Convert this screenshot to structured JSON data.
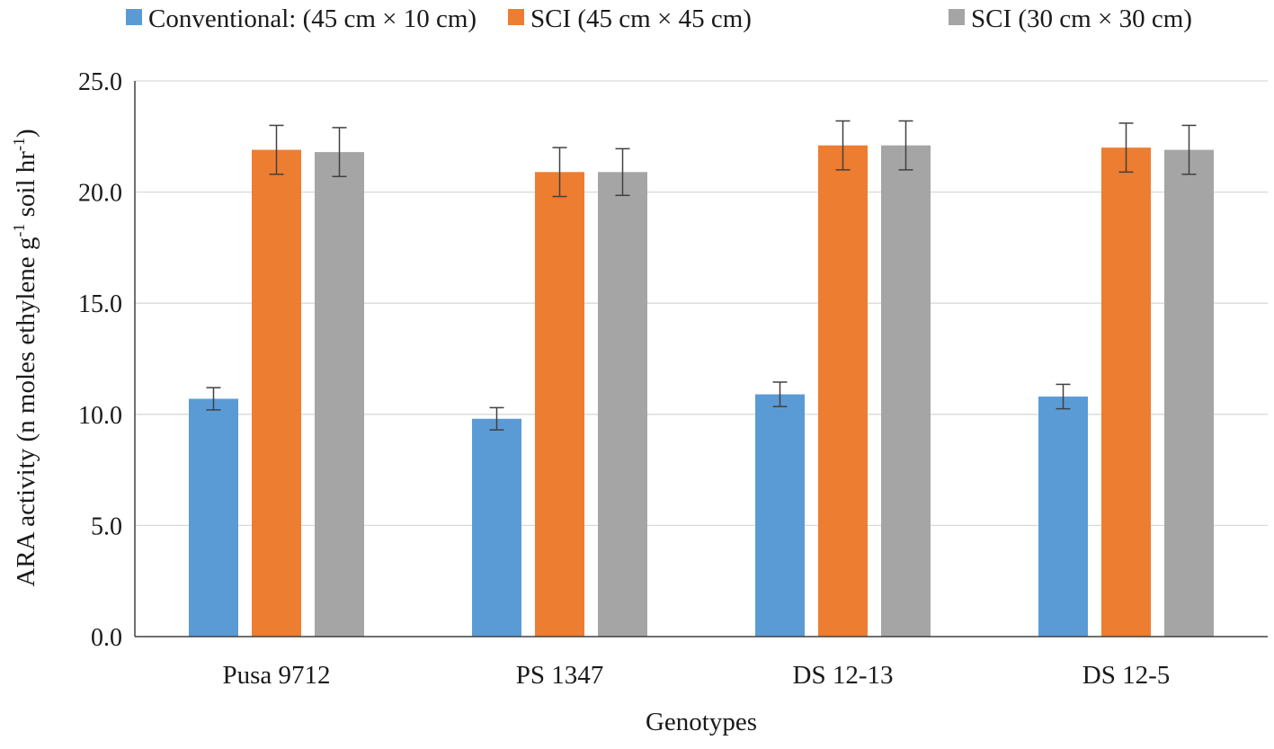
{
  "chart_data": {
    "type": "bar",
    "title": "",
    "xlabel": "Genotypes",
    "ylabel_main": "ARA activity (n moles ethylene g",
    "ylabel_sup1": "-1",
    "ylabel_mid": " soil hr",
    "ylabel_sup2": "-1",
    "ylabel_end": ")",
    "ylim": [
      0,
      25
    ],
    "yticks": [
      0,
      5,
      10,
      15,
      20,
      25
    ],
    "ytick_labels": [
      "0.0",
      "5.0",
      "10.0",
      "15.0",
      "20.0",
      "25.0"
    ],
    "grid": true,
    "legend_position": "top",
    "categories": [
      "Pusa 9712",
      "PS 1347",
      "DS 12-13",
      "DS 12-5"
    ],
    "series": [
      {
        "name": "Conventional: (45 cm × 10 cm)",
        "color": "#5B9BD5",
        "values": [
          10.7,
          9.8,
          10.9,
          10.8
        ],
        "errors": [
          0.5,
          0.5,
          0.55,
          0.55
        ]
      },
      {
        "name": "SCI (45 cm × 45 cm)",
        "color": "#ED7D31",
        "values": [
          21.9,
          20.9,
          22.1,
          22.0
        ],
        "errors": [
          1.1,
          1.1,
          1.1,
          1.1
        ]
      },
      {
        "name": "SCI (30 cm × 30 cm)",
        "color": "#A5A5A5",
        "values": [
          21.8,
          20.9,
          22.1,
          21.9
        ],
        "errors": [
          1.1,
          1.05,
          1.1,
          1.1
        ]
      }
    ]
  }
}
